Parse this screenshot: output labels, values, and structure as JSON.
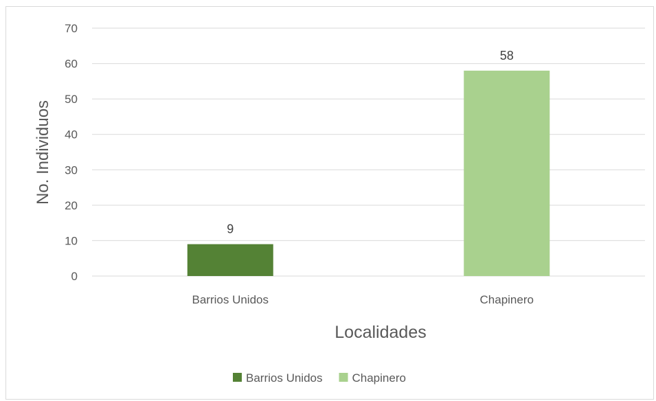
{
  "chart_data": {
    "type": "bar",
    "title": "",
    "xlabel": "Localidades",
    "ylabel": "No. Individuos",
    "ylim": [
      0,
      70
    ],
    "yticks": [
      0,
      10,
      20,
      30,
      40,
      50,
      60,
      70
    ],
    "grid": true,
    "legend_position": "bottom",
    "categories": [
      "Barrios Unidos",
      "Chapinero"
    ],
    "values": [
      9,
      58
    ],
    "data_labels": [
      "9",
      "58"
    ],
    "colors": [
      "#548235",
      "#a9d18e"
    ],
    "legend": [
      {
        "name": "Barrios Unidos",
        "color": "#548235"
      },
      {
        "name": "Chapinero",
        "color": "#a9d18e"
      }
    ]
  }
}
